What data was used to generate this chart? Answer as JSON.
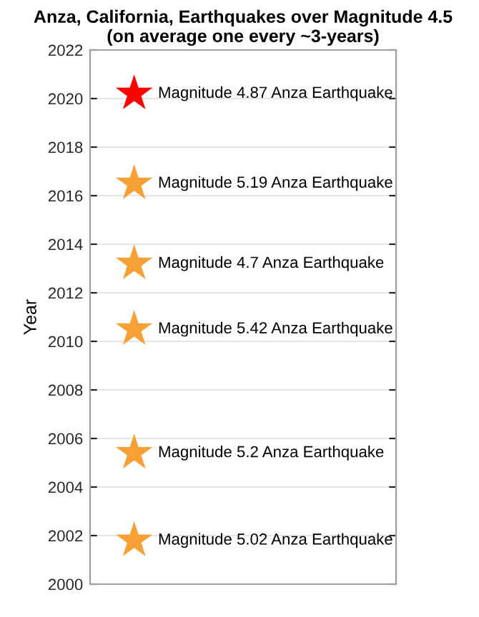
{
  "chart_data": {
    "type": "scatter",
    "title": "Anza, California, Earthquakes over Magnitude 4.5\n(on average one every ~3-years)",
    "ylabel": "Year",
    "categories": [
      null
    ],
    "series": [
      {
        "color": "#ff0000",
        "values": [
          2020.2
        ],
        "value_labels": [
          "Magnitude 4.87 Anza Earthquake"
        ]
      },
      {
        "color": "#f7a035",
        "values": [
          2016.5
        ],
        "value_labels": [
          "Magnitude 5.19 Anza Earthquake"
        ]
      },
      {
        "color": "#f7a035",
        "values": [
          2013.2
        ],
        "value_labels": [
          "Magnitude 4.7 Anza Earthquake"
        ]
      },
      {
        "color": "#f7a035",
        "values": [
          2010.5
        ],
        "value_labels": [
          "Magnitude 5.42 Anza Earthquake"
        ]
      },
      {
        "color": "#f7a035",
        "values": [
          2005.4
        ],
        "value_labels": [
          "Magnitude 5.2 Anza Earthquake"
        ]
      },
      {
        "color": "#f7a035",
        "values": [
          2001.8
        ],
        "value_labels": [
          "Magnitude 5.02 Anza Earthquake"
        ]
      }
    ],
    "ylim": [
      2000,
      2022
    ],
    "yticks": [
      2000,
      2002,
      2004,
      2006,
      2008,
      2010,
      2012,
      2014,
      2016,
      2018,
      2020,
      2022
    ],
    "grid": "y",
    "marker": "star"
  }
}
